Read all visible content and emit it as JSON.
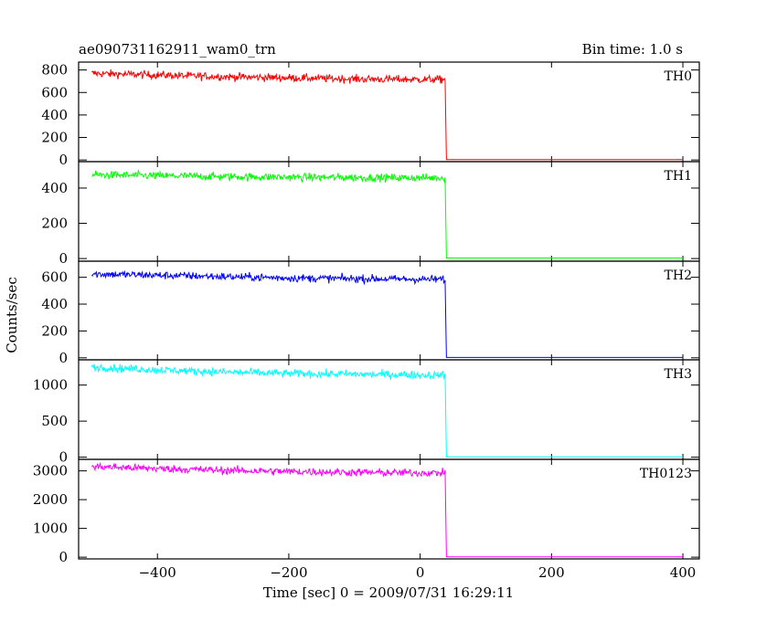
{
  "header": {
    "title": "ae090731162911_wam0_trn",
    "bin_time": "Bin time: 1.0 s"
  },
  "chart_data": {
    "type": "line",
    "xlabel": "Time [sec] 0 = 2009/07/31 16:29:11",
    "ylabel": "Counts/sec",
    "xlim": [
      -520,
      425
    ],
    "xticks": [
      -400,
      -200,
      0,
      200,
      400
    ],
    "xtick_labels": [
      "−400",
      "−200",
      "0",
      "200",
      "400"
    ],
    "grid": false,
    "legend": "none",
    "panels": [
      {
        "name": "TH0",
        "color": "#ff0000",
        "ylim": [
          -15,
          870
        ],
        "yticks": [
          0,
          200,
          400,
          600,
          800
        ],
        "x": [
          -500,
          -400,
          -300,
          -200,
          -100,
          0,
          38,
          40,
          100,
          200,
          300,
          400
        ],
        "y": [
          770,
          755,
          740,
          730,
          720,
          715,
          715,
          3,
          3,
          3,
          3,
          3
        ]
      },
      {
        "name": "TH1",
        "color": "#00ff00",
        "ylim": [
          -15,
          550
        ],
        "yticks": [
          0,
          200,
          400
        ],
        "x": [
          -500,
          -400,
          -300,
          -200,
          -100,
          0,
          38,
          40,
          100,
          200,
          300,
          400
        ],
        "y": [
          475,
          470,
          465,
          462,
          460,
          458,
          458,
          3,
          3,
          3,
          3,
          3
        ]
      },
      {
        "name": "TH2",
        "color": "#0000ff",
        "ylim": [
          -15,
          720
        ],
        "yticks": [
          0,
          200,
          400,
          600
        ],
        "x": [
          -500,
          -400,
          -300,
          -200,
          -100,
          0,
          38,
          40,
          100,
          200,
          300,
          400
        ],
        "y": [
          625,
          615,
          605,
          595,
          590,
          585,
          585,
          3,
          3,
          3,
          3,
          3
        ]
      },
      {
        "name": "TH3",
        "color": "#00ffff",
        "ylim": [
          -30,
          1350
        ],
        "yticks": [
          0,
          500,
          1000
        ],
        "x": [
          -500,
          -400,
          -300,
          -200,
          -100,
          0,
          38,
          40,
          100,
          200,
          300,
          400
        ],
        "y": [
          1250,
          1210,
          1180,
          1160,
          1150,
          1140,
          1140,
          5,
          5,
          5,
          5,
          5
        ]
      },
      {
        "name": "TH0123",
        "color": "#ff00ff",
        "ylim": [
          -60,
          3400
        ],
        "yticks": [
          0,
          1000,
          2000,
          3000
        ],
        "x": [
          -500,
          -400,
          -300,
          -200,
          -100,
          0,
          38,
          40,
          100,
          200,
          300,
          400
        ],
        "y": [
          3150,
          3080,
          3020,
          2980,
          2950,
          2930,
          2930,
          10,
          10,
          10,
          10,
          10
        ]
      }
    ]
  }
}
